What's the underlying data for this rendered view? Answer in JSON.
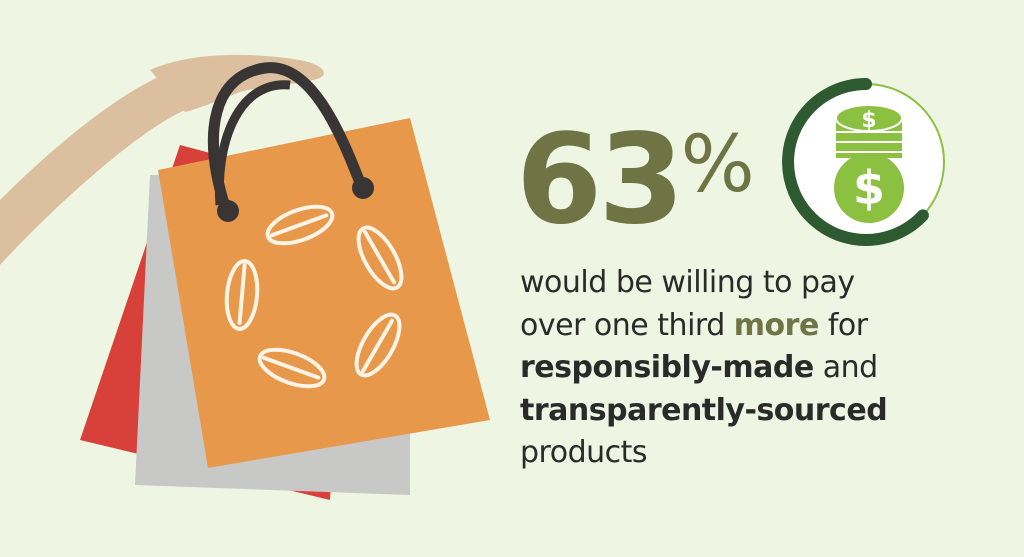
{
  "stat": {
    "value": "63",
    "unit": "%",
    "fill_fraction": 0.63
  },
  "text": {
    "l1": "would be willing to pay",
    "l2a": "over one third ",
    "l2b": "more",
    "l2c": " for",
    "l3a": "responsibly-made",
    "l3b": " and",
    "l4": "transparently-sourced",
    "l5": "products"
  },
  "icons": [
    "hand-icon",
    "shopping-bag-icon",
    "leaf-circle-icon",
    "coin-stack-dollar-icon",
    "progress-ring-icon"
  ],
  "colors": {
    "background": "#eef6e3",
    "stat": "#6e7444",
    "ring": "#2d5a30",
    "coin": "#8cc040",
    "bag_orange": "#e8984a",
    "bag_red": "#d8403a",
    "bag_gray": "#c8c8c6",
    "handle": "#3a3535",
    "skin": "#dcbf9f"
  }
}
